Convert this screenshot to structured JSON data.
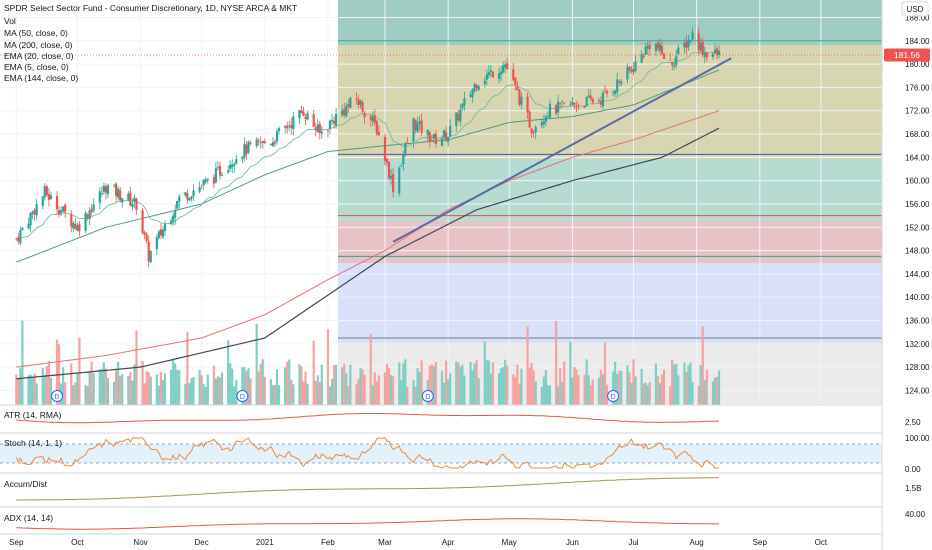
{
  "header": {
    "title": "SPDR Select Sector Fund - Consumer Discretionary, 1D, NYSE ARCA & MKT",
    "indicators": [
      "Vol",
      "MA (50, close, 0)",
      "MA (200, close, 0)",
      "EMA (20, close, 0)",
      "EMA (5, close, 0)",
      "EMA (144, close, 0)"
    ]
  },
  "currency": "USD",
  "last_price": "181.56",
  "chart_data": {
    "type": "candlestick",
    "title": "SPDR Select Sector Fund - Consumer Discretionary, 1D, NYSE ARCA & MKT",
    "x_axis_labels": [
      "Sep",
      "Oct",
      "Nov",
      "Dec",
      "2021",
      "Feb",
      "Mar",
      "Apr",
      "May",
      "Jun",
      "Jul",
      "Aug",
      "Sep",
      "Oct"
    ],
    "y_axis": {
      "ticks": [
        124.0,
        128.0,
        132.0,
        136.0,
        140.0,
        144.0,
        148.0,
        152.0,
        156.0,
        160.0,
        164.0,
        168.0,
        172.0,
        176.0,
        180.0,
        184.0,
        188.0
      ],
      "tick_labels": [
        "124.00",
        "128.00",
        "132.00",
        "136.00",
        "140.00",
        "144.00",
        "148.00",
        "152.00",
        "156.00",
        "160.00",
        "164.00",
        "168.00",
        "172.00",
        "176.00",
        "180.00",
        "184.00",
        "188.00"
      ],
      "range": [
        121.5,
        191.0
      ]
    },
    "price_path": [
      [
        "2020-09-01",
        150
      ],
      [
        "2020-09-15",
        158
      ],
      [
        "2020-10-01",
        152
      ],
      [
        "2020-10-15",
        159
      ],
      [
        "2020-10-30",
        156
      ],
      [
        "2020-11-05",
        147
      ],
      [
        "2020-11-20",
        157
      ],
      [
        "2020-12-05",
        160
      ],
      [
        "2020-12-20",
        165
      ],
      [
        "2021-01-05",
        167
      ],
      [
        "2021-01-20",
        172
      ],
      [
        "2021-01-28",
        168
      ],
      [
        "2021-02-05",
        171
      ],
      [
        "2021-02-15",
        174
      ],
      [
        "2021-02-25",
        169
      ],
      [
        "2021-03-05",
        159
      ],
      [
        "2021-03-15",
        170
      ],
      [
        "2021-03-25",
        167
      ],
      [
        "2021-04-01",
        168
      ],
      [
        "2021-04-15",
        177
      ],
      [
        "2021-04-29",
        180
      ],
      [
        "2021-05-12",
        169
      ],
      [
        "2021-05-20",
        172
      ],
      [
        "2021-06-01",
        173
      ],
      [
        "2021-06-15",
        174
      ],
      [
        "2021-06-30",
        179
      ],
      [
        "2021-07-10",
        184
      ],
      [
        "2021-07-19",
        180
      ],
      [
        "2021-07-30",
        185
      ],
      [
        "2021-08-05",
        182
      ],
      [
        "2021-08-12",
        181.56
      ]
    ],
    "ma_50_path": [
      [
        "2020-09-01",
        146
      ],
      [
        "2020-10-15",
        152
      ],
      [
        "2020-12-01",
        156
      ],
      [
        "2021-01-01",
        161
      ],
      [
        "2021-02-01",
        165
      ],
      [
        "2021-03-01",
        166
      ],
      [
        "2021-04-01",
        167
      ],
      [
        "2021-05-01",
        170
      ],
      [
        "2021-06-01",
        171
      ],
      [
        "2021-07-01",
        173
      ],
      [
        "2021-08-12",
        179
      ]
    ],
    "ma_200_path": [
      [
        "2020-09-01",
        128
      ],
      [
        "2020-10-15",
        130
      ],
      [
        "2020-12-01",
        133
      ],
      [
        "2021-01-01",
        137
      ],
      [
        "2021-02-01",
        143
      ],
      [
        "2021-03-01",
        148
      ],
      [
        "2021-04-01",
        155
      ],
      [
        "2021-05-01",
        160
      ],
      [
        "2021-06-01",
        164
      ],
      [
        "2021-07-01",
        167
      ],
      [
        "2021-08-12",
        172
      ]
    ],
    "ema_144_path": [
      [
        "2020-09-01",
        126
      ],
      [
        "2020-11-01",
        128
      ],
      [
        "2021-01-01",
        133
      ],
      [
        "2021-03-01",
        147
      ],
      [
        "2021-04-15",
        155
      ],
      [
        "2021-06-01",
        160
      ],
      [
        "2021-07-15",
        164
      ],
      [
        "2021-08-12",
        169
      ]
    ],
    "trendline": {
      "from": [
        "2021-03-05",
        149.5
      ],
      "to": [
        "2021-08-18",
        181
      ]
    },
    "horizontal_levels": [
      184.0,
      164.5,
      154.0,
      147.0,
      133.0
    ],
    "dividend_markers": [
      "2020-09-21",
      "2020-12-21",
      "2021-03-22",
      "2021-06-21"
    ],
    "sub_panes": [
      {
        "name": "ATR (14, RMA)",
        "ticks": [
          "2.50"
        ]
      },
      {
        "name": "Stoch (14, 1, 1)",
        "ticks": [
          "100.00",
          "0.00"
        ]
      },
      {
        "name": "Accum/Dist",
        "ticks": [
          "1.5B"
        ]
      },
      {
        "name": "ADX (14, 14)",
        "ticks": [
          "40.00"
        ]
      }
    ],
    "legend_placement": "top-left"
  },
  "colors": {
    "up": "#26a69a",
    "down": "#ef5350",
    "ma50": "#4e9a86",
    "ma200": "#e57373",
    "ema144": "#434651",
    "trendline": "#5b6aa8",
    "price_badge": "#ef5350"
  },
  "dividend_label": "D"
}
